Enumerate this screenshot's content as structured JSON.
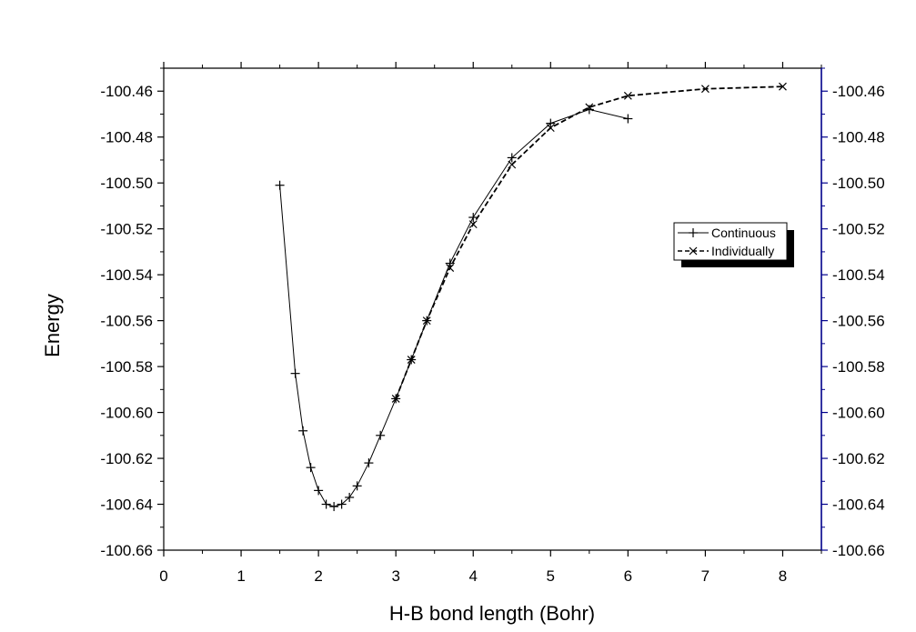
{
  "chart_data": {
    "type": "line",
    "title": "",
    "xlabel": "H-B bond length (Bohr)",
    "ylabel": "Energy",
    "xlim": [
      0,
      8.5
    ],
    "ylim": [
      -100.66,
      -100.45
    ],
    "x_ticks": [
      "0",
      "1",
      "2",
      "3",
      "4",
      "5",
      "6",
      "7",
      "8"
    ],
    "y_ticks": [
      "-100.46",
      "-100.48",
      "-100.50",
      "-100.52",
      "-100.54",
      "-100.56",
      "-100.58",
      "-100.60",
      "-100.62",
      "-100.64",
      "-100.66"
    ],
    "right_axis": {
      "ticks": [
        "-100.46",
        "-100.48",
        "-100.50",
        "-100.52",
        "-100.54",
        "-100.56",
        "-100.58",
        "-100.60",
        "-100.62",
        "-100.64",
        "-100.66"
      ],
      "color": "#00008b"
    },
    "grid": false,
    "legend_placement": "right-middle",
    "series": [
      {
        "name": "Continuous",
        "marker": "+",
        "line_style": "solid",
        "color": "#000000",
        "x": [
          1.5,
          1.7,
          1.8,
          1.9,
          2.0,
          2.1,
          2.2,
          2.3,
          2.4,
          2.5,
          2.65,
          2.8,
          3.0,
          3.2,
          3.4,
          3.7,
          4.0,
          4.5,
          5.0,
          5.5,
          6.0
        ],
        "y": [
          -100.501,
          -100.583,
          -100.608,
          -100.624,
          -100.634,
          -100.64,
          -100.641,
          -100.64,
          -100.637,
          -100.632,
          -100.622,
          -100.61,
          -100.594,
          -100.577,
          -100.56,
          -100.535,
          -100.515,
          -100.489,
          -100.474,
          -100.468,
          -100.472
        ]
      },
      {
        "name": "Individually",
        "marker": "x",
        "line_style": "dashed",
        "color": "#000000",
        "x": [
          3.0,
          3.2,
          3.4,
          3.7,
          4.0,
          4.5,
          5.0,
          5.5,
          6.0,
          7.0,
          8.0
        ],
        "y": [
          -100.594,
          -100.577,
          -100.56,
          -100.537,
          -100.518,
          -100.492,
          -100.476,
          -100.467,
          -100.462,
          -100.459,
          -100.458
        ]
      }
    ]
  }
}
